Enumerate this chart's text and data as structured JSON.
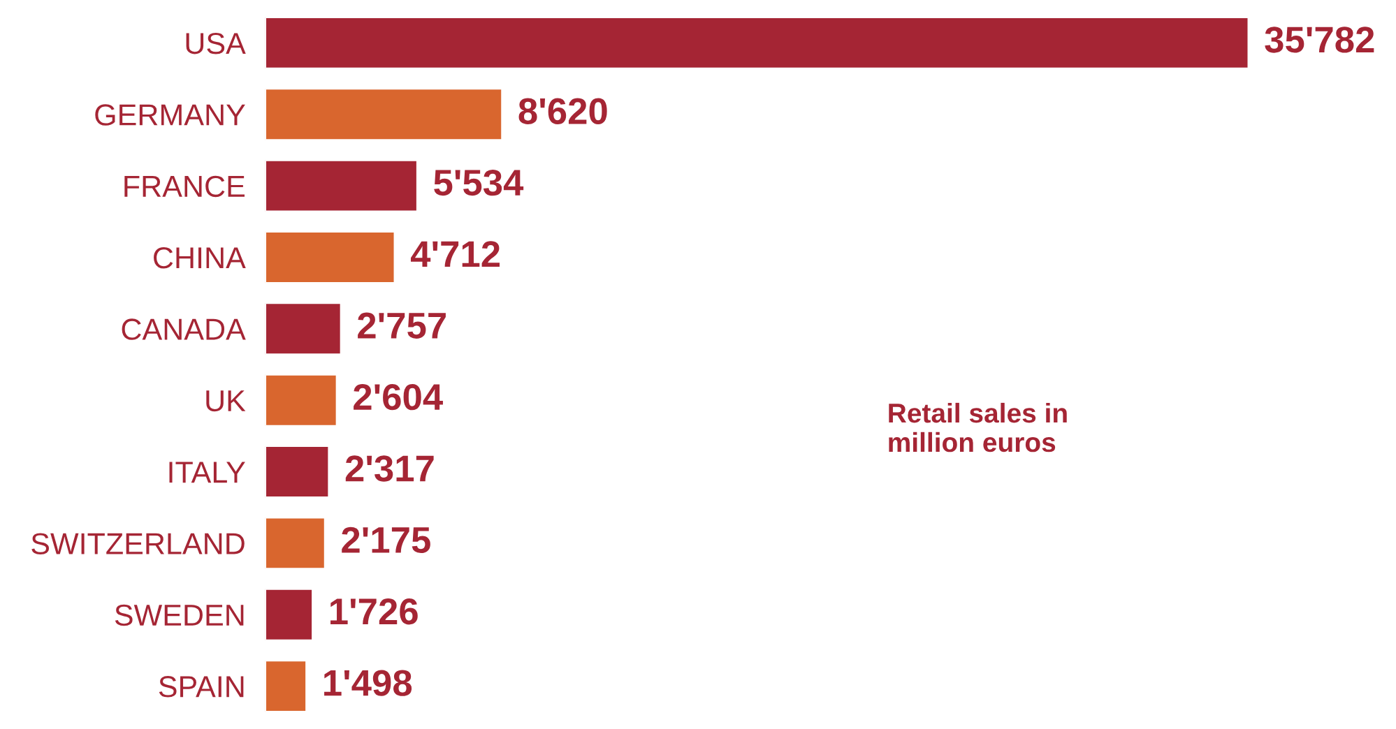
{
  "chart_data": {
    "type": "bar",
    "orientation": "horizontal",
    "categories": [
      "USA",
      "GERMANY",
      "FRANCE",
      "CHINA",
      "CANADA",
      "UK",
      "ITALY",
      "SWITZERLAND",
      "SWEDEN",
      "SPAIN"
    ],
    "values": [
      35782,
      8620,
      5534,
      4712,
      2757,
      2604,
      2317,
      2175,
      1726,
      1498
    ],
    "value_labels": [
      "35'782",
      "8'620",
      "5'534",
      "4'712",
      "2'757",
      "2'604",
      "2'317",
      "2'175",
      "1'726",
      "1'498"
    ],
    "colors": [
      "#a52534",
      "#d9662e",
      "#a52534",
      "#d9662e",
      "#a52534",
      "#d9662e",
      "#a52534",
      "#d9662e",
      "#a52534",
      "#d9662e"
    ],
    "annotations": [
      "Retail sales in\nmillion euros"
    ],
    "grid": false,
    "legend": false
  }
}
